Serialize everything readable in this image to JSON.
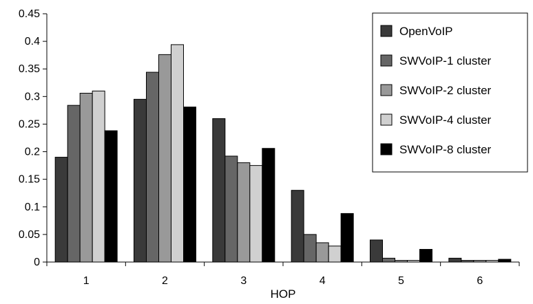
{
  "chart_data": {
    "type": "bar",
    "title": "",
    "xlabel": "HOP",
    "ylabel": "",
    "ylim": [
      0,
      0.45
    ],
    "yticks": [
      "0",
      "0.05",
      "0.1",
      "0.15",
      "0.2",
      "0.25",
      "0.3",
      "0.35",
      "0.4",
      "0.45"
    ],
    "categories": [
      "1",
      "2",
      "3",
      "4",
      "5",
      "6"
    ],
    "grid": false,
    "legend_position": "top-right",
    "series": [
      {
        "name": "OpenVoIP",
        "color": "#3a3a3a",
        "values": [
          0.19,
          0.295,
          0.26,
          0.13,
          0.04,
          0.007
        ]
      },
      {
        "name": "SWVoIP-1 cluster",
        "color": "#666666",
        "values": [
          0.284,
          0.344,
          0.192,
          0.05,
          0.007,
          0.003
        ]
      },
      {
        "name": "SWVoIP-2 cluster",
        "color": "#999999",
        "values": [
          0.306,
          0.376,
          0.18,
          0.035,
          0.003,
          0.003
        ]
      },
      {
        "name": "SWVoIP-4 cluster",
        "color": "#d0d0d0",
        "values": [
          0.31,
          0.394,
          0.175,
          0.029,
          0.003,
          0.003
        ]
      },
      {
        "name": "SWVoIP-8 cluster",
        "color": "#000000",
        "values": [
          0.238,
          0.281,
          0.206,
          0.088,
          0.023,
          0.005
        ]
      }
    ]
  }
}
